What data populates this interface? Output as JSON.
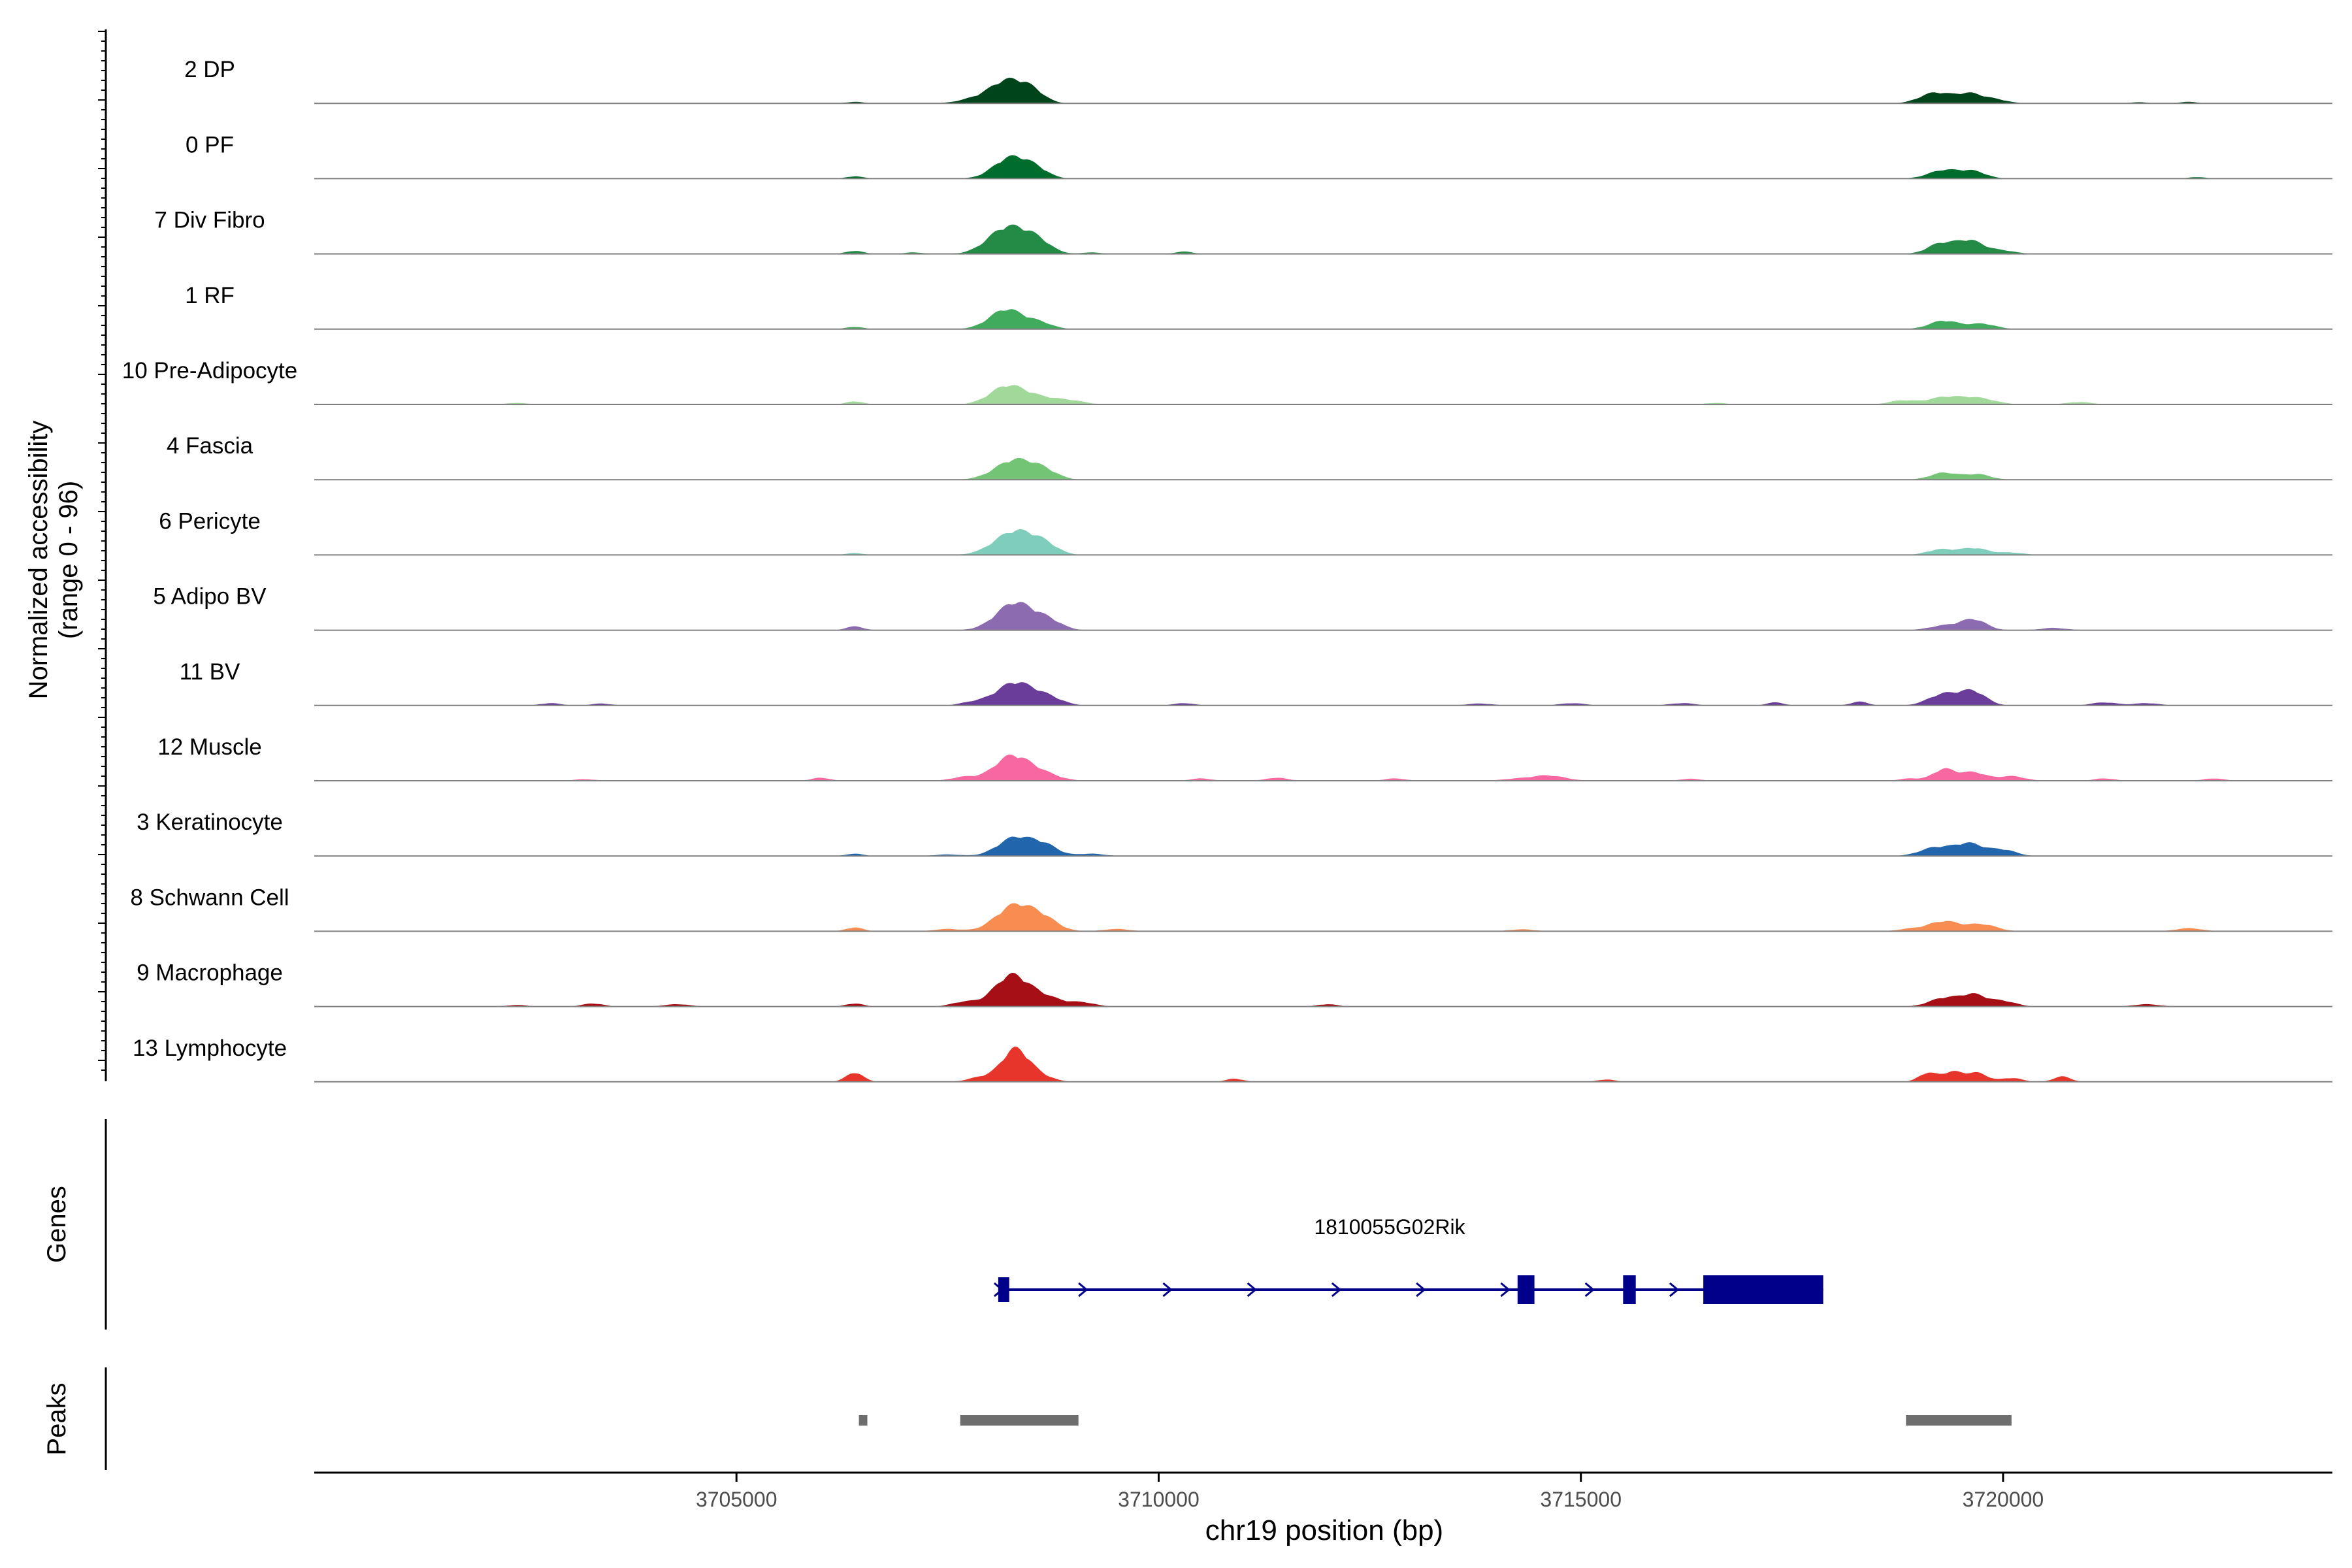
{
  "y_axis_title_line1": "Normalized accessibility",
  "y_axis_title_line2": "(range 0 - 96)",
  "genes_label": "Genes",
  "peaks_label": "Peaks",
  "chart_data": {
    "type": "area",
    "title": "",
    "xlabel": "chr19 position (bp)",
    "ylabel": "Normalized accessibility (range 0 - 96)",
    "xlim": [
      3700000,
      3723900
    ],
    "ylim": [
      0,
      96
    ],
    "x_ticks": [
      3705000,
      3710000,
      3715000,
      3720000
    ],
    "x_tick_labels": [
      "3705000",
      "3710000",
      "3715000",
      "3720000"
    ],
    "tracks": [
      {
        "name": "2 DP",
        "color": "#00441B",
        "peaks": [
          [
            3706400,
            4,
            100
          ],
          [
            3707800,
            10,
            180
          ],
          [
            3708200,
            58,
            200
          ],
          [
            3708500,
            28,
            150
          ],
          [
            3719200,
            28,
            180
          ],
          [
            3719600,
            24,
            150
          ],
          [
            3719900,
            10,
            150
          ],
          [
            3721600,
            3,
            100
          ],
          [
            3722200,
            4,
            100
          ]
        ]
      },
      {
        "name": "0 PF",
        "color": "#006D2C",
        "peaks": [
          [
            3706400,
            6,
            100
          ],
          [
            3708250,
            55,
            200
          ],
          [
            3708550,
            20,
            150
          ],
          [
            3719300,
            22,
            180
          ],
          [
            3719650,
            18,
            150
          ],
          [
            3722300,
            4,
            100
          ]
        ]
      },
      {
        "name": "7 Div Fibro",
        "color": "#238B45",
        "peaks": [
          [
            3706400,
            8,
            100
          ],
          [
            3707100,
            4,
            100
          ],
          [
            3708200,
            68,
            220
          ],
          [
            3708550,
            32,
            170
          ],
          [
            3709200,
            4,
            100
          ],
          [
            3710300,
            6,
            100
          ],
          [
            3719250,
            25,
            150
          ],
          [
            3719600,
            35,
            170
          ],
          [
            3720000,
            8,
            150
          ]
        ]
      },
      {
        "name": "1 RF",
        "color": "#41AB5D",
        "peaks": [
          [
            3706400,
            6,
            100
          ],
          [
            3708200,
            52,
            200
          ],
          [
            3708600,
            15,
            150
          ],
          [
            3719300,
            22,
            170
          ],
          [
            3719750,
            14,
            160
          ]
        ]
      },
      {
        "name": "10 Pre-Adipocyte",
        "color": "#A1D99B",
        "peaks": [
          [
            3702400,
            4,
            120
          ],
          [
            3706400,
            8,
            100
          ],
          [
            3708200,
            45,
            200
          ],
          [
            3708600,
            18,
            250
          ],
          [
            3709000,
            6,
            150
          ],
          [
            3716600,
            4,
            120
          ],
          [
            3718800,
            10,
            150
          ],
          [
            3719300,
            18,
            200
          ],
          [
            3719700,
            16,
            200
          ],
          [
            3720900,
            6,
            150
          ]
        ]
      },
      {
        "name": "4 Fascia",
        "color": "#74C476",
        "peaks": [
          [
            3708300,
            52,
            230
          ],
          [
            3708650,
            18,
            160
          ],
          [
            3719300,
            18,
            160
          ],
          [
            3719700,
            14,
            150
          ]
        ]
      },
      {
        "name": "6 Pericyte",
        "color": "#7FCDBB",
        "peaks": [
          [
            3706400,
            5,
            100
          ],
          [
            3708300,
            62,
            240
          ],
          [
            3708650,
            20,
            160
          ],
          [
            3719250,
            14,
            150
          ],
          [
            3719650,
            18,
            170
          ],
          [
            3720100,
            6,
            150
          ]
        ]
      },
      {
        "name": "5 Adipo BV",
        "color": "#8C6BB1",
        "peaks": [
          [
            3706400,
            10,
            100
          ],
          [
            3708300,
            72,
            220
          ],
          [
            3708700,
            22,
            160
          ],
          [
            3719300,
            12,
            170
          ],
          [
            3719650,
            28,
            150
          ],
          [
            3720600,
            6,
            150
          ]
        ]
      },
      {
        "name": "11 BV",
        "color": "#6A3D9A",
        "peaks": [
          [
            3702800,
            6,
            120
          ],
          [
            3703400,
            5,
            120
          ],
          [
            3707800,
            8,
            150
          ],
          [
            3708300,
            60,
            220
          ],
          [
            3708700,
            18,
            170
          ],
          [
            3710300,
            6,
            120
          ],
          [
            3713800,
            5,
            150
          ],
          [
            3714900,
            6,
            150
          ],
          [
            3716200,
            6,
            150
          ],
          [
            3717300,
            8,
            100
          ],
          [
            3718300,
            10,
            100
          ],
          [
            3719300,
            30,
            180
          ],
          [
            3719650,
            35,
            150
          ],
          [
            3721200,
            8,
            150
          ],
          [
            3721700,
            6,
            150
          ]
        ]
      },
      {
        "name": "12 Muscle",
        "color": "#F768A1",
        "peaks": [
          [
            3703200,
            4,
            120
          ],
          [
            3706000,
            8,
            100
          ],
          [
            3707700,
            10,
            150
          ],
          [
            3708250,
            62,
            200
          ],
          [
            3708600,
            20,
            200
          ],
          [
            3710500,
            6,
            120
          ],
          [
            3711400,
            8,
            120
          ],
          [
            3712800,
            6,
            120
          ],
          [
            3714200,
            4,
            150
          ],
          [
            3714600,
            14,
            200
          ],
          [
            3716300,
            5,
            120
          ],
          [
            3718900,
            6,
            120
          ],
          [
            3719300,
            30,
            130
          ],
          [
            3719650,
            22,
            150
          ],
          [
            3720100,
            12,
            150
          ],
          [
            3721200,
            6,
            120
          ],
          [
            3722500,
            6,
            120
          ]
        ]
      },
      {
        "name": "3 Keratinocyte",
        "color": "#2166AC",
        "peaks": [
          [
            3706400,
            6,
            100
          ],
          [
            3707500,
            4,
            150
          ],
          [
            3708300,
            48,
            200
          ],
          [
            3708650,
            26,
            160
          ],
          [
            3709200,
            6,
            150
          ],
          [
            3719200,
            22,
            180
          ],
          [
            3719600,
            32,
            170
          ],
          [
            3720000,
            16,
            150
          ]
        ]
      },
      {
        "name": "8 Schwann Cell",
        "color": "#F88D51",
        "peaks": [
          [
            3706400,
            10,
            100
          ],
          [
            3707500,
            6,
            150
          ],
          [
            3708300,
            68,
            220
          ],
          [
            3708650,
            26,
            170
          ],
          [
            3709500,
            6,
            150
          ],
          [
            3714300,
            5,
            150
          ],
          [
            3718900,
            6,
            150
          ],
          [
            3719300,
            26,
            180
          ],
          [
            3719750,
            18,
            170
          ],
          [
            3722200,
            8,
            150
          ]
        ]
      },
      {
        "name": "9 Macrophage",
        "color": "#A50F15",
        "peaks": [
          [
            3702400,
            4,
            120
          ],
          [
            3703300,
            8,
            120
          ],
          [
            3704300,
            6,
            150
          ],
          [
            3706400,
            8,
            100
          ],
          [
            3707700,
            12,
            150
          ],
          [
            3708250,
            80,
            200
          ],
          [
            3708650,
            24,
            200
          ],
          [
            3709100,
            10,
            150
          ],
          [
            3712000,
            6,
            120
          ],
          [
            3719300,
            22,
            170
          ],
          [
            3719650,
            30,
            150
          ],
          [
            3720000,
            14,
            150
          ],
          [
            3721700,
            6,
            150
          ]
        ]
      },
      {
        "name": "13 Lymphocyte",
        "color": "#E7352B",
        "peaks": [
          [
            3706400,
            24,
            100
          ],
          [
            3707900,
            12,
            150
          ],
          [
            3708300,
            85,
            160
          ],
          [
            3708600,
            14,
            150
          ],
          [
            3710900,
            8,
            100
          ],
          [
            3715300,
            6,
            100
          ],
          [
            3719100,
            22,
            100
          ],
          [
            3719400,
            26,
            130
          ],
          [
            3719700,
            22,
            120
          ],
          [
            3720100,
            10,
            120
          ],
          [
            3720700,
            14,
            100
          ]
        ]
      }
    ],
    "gene": {
      "name": "1810055G02Rik",
      "strand": "+",
      "start": 3708100,
      "end": 3717870,
      "exons": [
        [
          3708100,
          3708230
        ],
        [
          3714250,
          3714450
        ],
        [
          3715500,
          3715650
        ],
        [
          3716450,
          3717870
        ]
      ]
    },
    "peaks": [
      [
        3706450,
        3706550
      ],
      [
        3707650,
        3709050
      ],
      [
        3718850,
        3720100
      ]
    ]
  }
}
